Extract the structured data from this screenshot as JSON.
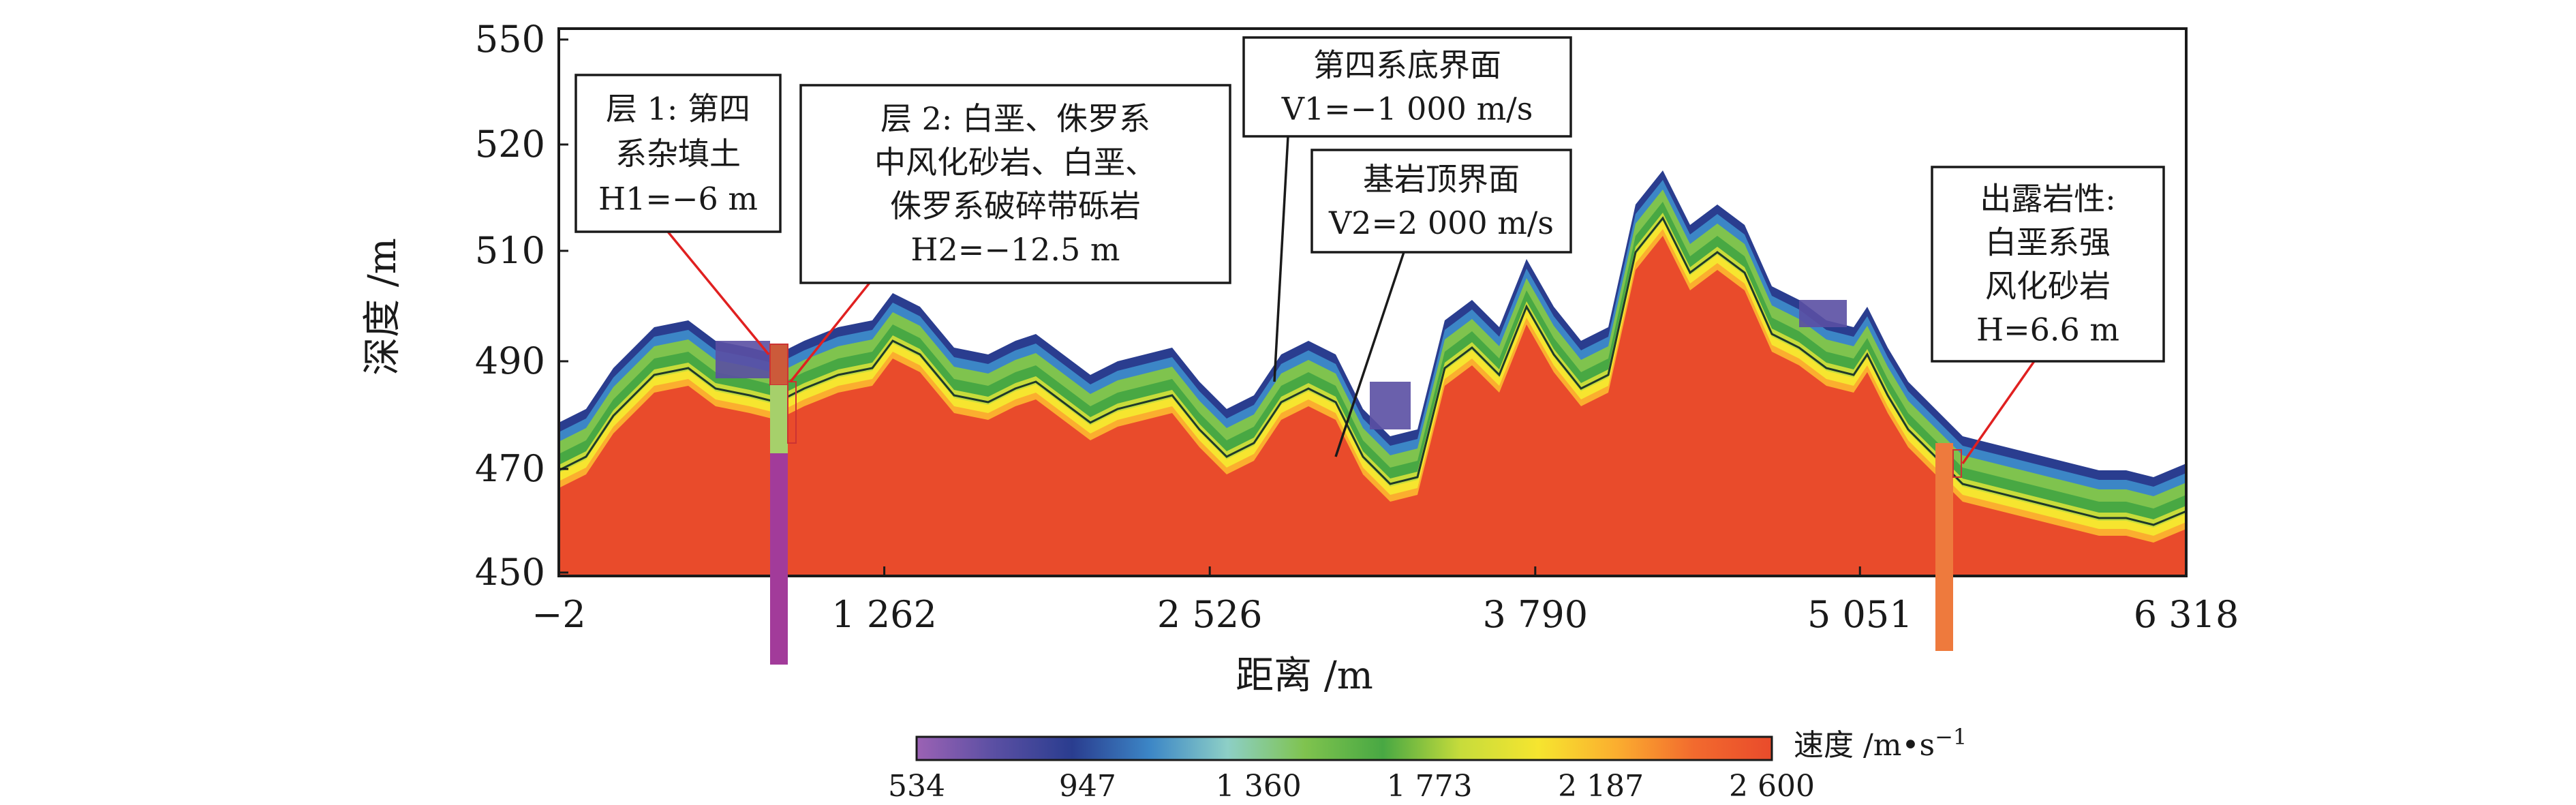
{
  "chart_data": {
    "type": "heatmap",
    "title": "",
    "xlabel": "距离 /m",
    "ylabel": "深度 /m",
    "x_ticks": [
      "−2",
      "1 262",
      "2 526",
      "3 790",
      "5 051",
      "6 318"
    ],
    "x_tick_values": [
      -2,
      1262,
      2526,
      3790,
      5051,
      6318
    ],
    "y_ticks": [
      "550",
      "520",
      "510",
      "490",
      "470",
      "450"
    ],
    "xlim": [
      -2,
      6318
    ],
    "colorbar": {
      "label": "速度 /m•s",
      "label_superscript": "−1",
      "range": [
        534,
        2600
      ],
      "ticks": [
        "534",
        "947",
        "1 360",
        "1 773",
        "2 187",
        "2 600"
      ],
      "colors": [
        "#9b62b4",
        "#5a4fa3",
        "#2a3d8f",
        "#3c86c6",
        "#8dcfc6",
        "#7fc34e",
        "#48a843",
        "#c7dc3b",
        "#f6e52f",
        "#fbae2f",
        "#f26a2e",
        "#e94b2b"
      ]
    },
    "annotations": [
      {
        "name": "layer-1",
        "lines": [
          "层 1: 第四",
          "系杂填土",
          "H1=−6 m"
        ]
      },
      {
        "name": "layer-2",
        "lines": [
          "层 2: 白垩、侏罗系",
          "中风化砂岩、白垩、",
          "侏罗系破碎带砾岩",
          "H2=−12.5 m"
        ]
      },
      {
        "name": "quaternary-base",
        "lines": [
          "第四系底界面",
          "V1=−1 000 m/s"
        ]
      },
      {
        "name": "bedrock-top",
        "lines": [
          "基岩顶界面",
          "V2=2 000 m/s"
        ]
      },
      {
        "name": "outcrop",
        "lines": [
          "出露岩性:",
          "白垩系强",
          "风化砂岩",
          "H=6.6 m"
        ]
      }
    ]
  }
}
